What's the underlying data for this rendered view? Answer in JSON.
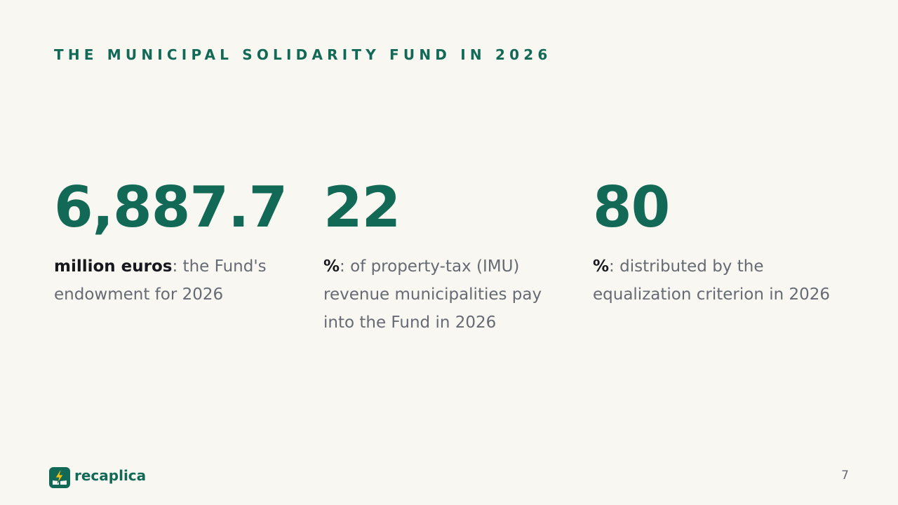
{
  "slide": {
    "title": "THE MUNICIPAL SOLIDARITY FUND IN 2026"
  },
  "stats": [
    {
      "value": "6,887.7",
      "unit": "million euros",
      "description": ": the Fund's endowment for 2026"
    },
    {
      "value": "22",
      "unit": "%",
      "description": ": of property-tax (IMU) revenue municipalities pay into the Fund in 2026"
    },
    {
      "value": "80",
      "unit": "%",
      "description": ": distributed by the equalization criterion in 2026"
    }
  ],
  "footer": {
    "brand_name": "recaplica",
    "brand_icon": "lightning-book-icon",
    "page_number": "7"
  },
  "colors": {
    "background": "#f8f7f2",
    "accent": "#126a56",
    "text_dark": "#16181d",
    "text_muted": "#666a73",
    "icon_bolt": "#f2c418"
  }
}
